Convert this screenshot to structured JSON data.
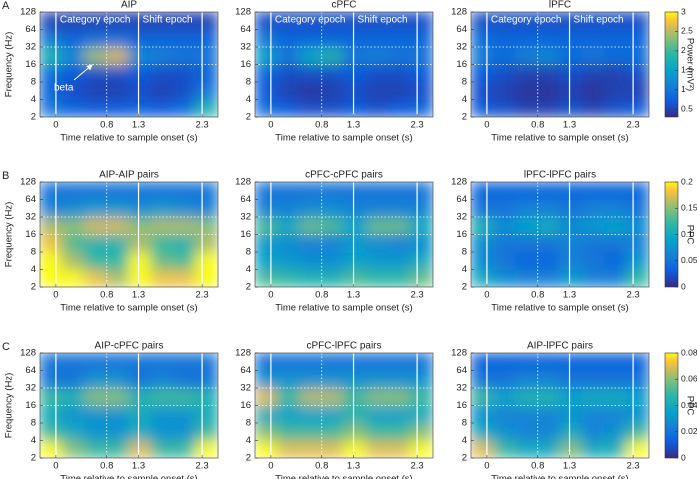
{
  "panel_labels": [
    "A",
    "B",
    "C"
  ],
  "chart_data": [
    {
      "type": "heatmap",
      "title": "AIP",
      "xlabel": "Time relative to sample onset (s)",
      "ylabel": "Frequency (Hz)",
      "xlim": [
        -0.25,
        2.55
      ],
      "xticks": [
        0,
        0.8,
        1.3,
        2.3
      ],
      "ylim": [
        2,
        128
      ],
      "yticks": [
        2,
        4,
        8,
        16,
        32,
        64,
        128
      ],
      "log_y": true,
      "x_bins": [
        -0.25,
        0.1,
        0.45,
        0.8,
        1.15,
        1.5,
        1.85,
        2.2,
        2.55
      ],
      "y_bins": [
        2,
        4,
        8,
        16,
        32,
        64,
        128
      ],
      "values": [
        [
          1.0,
          0.8,
          0.7,
          0.7,
          0.8,
          0.7,
          0.9,
          1.8
        ],
        [
          0.8,
          0.6,
          0.5,
          0.5,
          0.6,
          0.5,
          0.6,
          1.0
        ],
        [
          0.9,
          0.7,
          0.6,
          0.6,
          0.7,
          0.6,
          0.6,
          0.8
        ],
        [
          1.8,
          1.2,
          2.4,
          2.6,
          1.2,
          1.1,
          1.0,
          1.0
        ],
        [
          1.0,
          0.8,
          0.9,
          0.9,
          0.8,
          0.8,
          0.8,
          0.8
        ],
        [
          0.5,
          0.5,
          0.5,
          0.5,
          0.5,
          0.5,
          0.5,
          0.5
        ]
      ],
      "zlim": [
        0.3,
        3
      ],
      "vlines": [
        0,
        1.3,
        2.3
      ],
      "dotted_vlines": [
        0.8
      ],
      "dotted_hlines": [
        16,
        32
      ],
      "annotations": [
        "Category epoch",
        "Shift epoch"
      ],
      "arrow_label": "beta"
    },
    {
      "type": "heatmap",
      "title": "cPFC",
      "xlabel": "Time relative to sample onset (s)",
      "xlim": [
        -0.25,
        2.55
      ],
      "xticks": [
        0,
        0.8,
        1.3,
        2.3
      ],
      "ylim": [
        2,
        128
      ],
      "yticks": [
        2,
        4,
        8,
        16,
        32,
        64,
        128
      ],
      "log_y": true,
      "x_bins": [
        -0.25,
        0.1,
        0.45,
        0.8,
        1.15,
        1.5,
        1.85,
        2.2,
        2.55
      ],
      "y_bins": [
        2,
        4,
        8,
        16,
        32,
        64,
        128
      ],
      "values": [
        [
          0.9,
          0.7,
          0.6,
          0.6,
          0.7,
          0.6,
          0.7,
          0.8
        ],
        [
          0.7,
          0.5,
          0.4,
          0.5,
          0.6,
          0.5,
          0.5,
          0.6
        ],
        [
          0.8,
          0.6,
          0.6,
          0.6,
          0.7,
          0.6,
          0.6,
          0.7
        ],
        [
          1.5,
          1.0,
          1.6,
          1.8,
          1.0,
          1.1,
          1.0,
          1.0
        ],
        [
          1.0,
          0.8,
          0.8,
          0.8,
          0.8,
          0.8,
          0.8,
          0.8
        ],
        [
          0.6,
          0.6,
          0.6,
          0.6,
          0.6,
          0.6,
          0.6,
          0.6
        ]
      ],
      "zlim": [
        0.3,
        3
      ],
      "vlines": [
        0,
        1.3,
        2.3
      ],
      "dotted_vlines": [
        0.8
      ],
      "dotted_hlines": [
        16,
        32
      ],
      "annotations": [
        "Category epoch",
        "Shift epoch"
      ]
    },
    {
      "type": "heatmap",
      "title": "lPFC",
      "xlabel": "Time relative to sample onset (s)",
      "xlim": [
        -0.25,
        2.55
      ],
      "xticks": [
        0,
        0.8,
        1.3,
        2.3
      ],
      "ylim": [
        2,
        128
      ],
      "yticks": [
        2,
        4,
        8,
        16,
        32,
        64,
        128
      ],
      "log_y": true,
      "x_bins": [
        -0.25,
        0.1,
        0.45,
        0.8,
        1.15,
        1.5,
        1.85,
        2.2,
        2.55
      ],
      "y_bins": [
        2,
        4,
        8,
        16,
        32,
        64,
        128
      ],
      "values": [
        [
          0.7,
          0.6,
          0.5,
          0.5,
          0.6,
          0.5,
          0.6,
          0.7
        ],
        [
          0.6,
          0.5,
          0.4,
          0.4,
          0.5,
          0.4,
          0.5,
          0.5
        ],
        [
          0.7,
          0.6,
          0.5,
          0.5,
          0.6,
          0.5,
          0.5,
          0.6
        ],
        [
          1.1,
          0.9,
          1.1,
          1.2,
          0.9,
          1.0,
          0.9,
          0.9
        ],
        [
          0.9,
          0.8,
          0.8,
          0.8,
          0.8,
          0.8,
          0.8,
          0.8
        ],
        [
          0.6,
          0.6,
          0.6,
          0.6,
          0.6,
          0.6,
          0.6,
          0.6
        ]
      ],
      "zlim": [
        0.3,
        3
      ],
      "zticks": [
        0.5,
        1,
        1.5,
        2,
        2.5,
        3
      ],
      "zlabel": "Power (mV²)",
      "vlines": [
        0,
        1.3,
        2.3
      ],
      "dotted_vlines": [
        0.8
      ],
      "dotted_hlines": [
        16,
        32
      ],
      "annotations": [
        "Category epoch",
        "Shift epoch"
      ]
    },
    {
      "type": "heatmap",
      "title": "AIP-AIP pairs",
      "xlabel": "Time relative to sample onset (s)",
      "ylabel": "Frequency (Hz)",
      "xlim": [
        -0.25,
        2.55
      ],
      "xticks": [
        0,
        0.8,
        1.3,
        2.3
      ],
      "ylim": [
        2,
        128
      ],
      "yticks": [
        2,
        4,
        8,
        16,
        32,
        64,
        128
      ],
      "log_y": true,
      "x_bins": [
        -0.25,
        0.1,
        0.45,
        0.8,
        1.15,
        1.5,
        1.85,
        2.2,
        2.55
      ],
      "y_bins": [
        2,
        4,
        8,
        16,
        32,
        64,
        128
      ],
      "values": [
        [
          0.2,
          0.2,
          0.18,
          0.16,
          0.2,
          0.18,
          0.18,
          0.2
        ],
        [
          0.2,
          0.16,
          0.12,
          0.12,
          0.2,
          0.14,
          0.13,
          0.2
        ],
        [
          0.18,
          0.13,
          0.11,
          0.11,
          0.16,
          0.12,
          0.11,
          0.16
        ],
        [
          0.16,
          0.15,
          0.17,
          0.17,
          0.15,
          0.16,
          0.16,
          0.15
        ],
        [
          0.06,
          0.07,
          0.08,
          0.08,
          0.07,
          0.08,
          0.07,
          0.06
        ],
        [
          0.05,
          0.05,
          0.05,
          0.05,
          0.05,
          0.05,
          0.05,
          0.05
        ]
      ],
      "zlim": [
        0,
        0.2
      ],
      "vlines": [
        0,
        1.3,
        2.3
      ],
      "dotted_vlines": [
        0.8
      ],
      "dotted_hlines": [
        16,
        32
      ]
    },
    {
      "type": "heatmap",
      "title": "cPFC-cPFC pairs",
      "xlabel": "Time relative to sample onset (s)",
      "xlim": [
        -0.25,
        2.55
      ],
      "xticks": [
        0,
        0.8,
        1.3,
        2.3
      ],
      "ylim": [
        2,
        128
      ],
      "yticks": [
        2,
        4,
        8,
        16,
        32,
        64,
        128
      ],
      "log_y": true,
      "x_bins": [
        -0.25,
        0.1,
        0.45,
        0.8,
        1.15,
        1.5,
        1.85,
        2.2,
        2.55
      ],
      "y_bins": [
        2,
        4,
        8,
        16,
        32,
        64,
        128
      ],
      "values": [
        [
          0.13,
          0.12,
          0.11,
          0.11,
          0.13,
          0.12,
          0.12,
          0.14
        ],
        [
          0.09,
          0.08,
          0.07,
          0.07,
          0.09,
          0.08,
          0.08,
          0.1
        ],
        [
          0.08,
          0.07,
          0.06,
          0.06,
          0.08,
          0.07,
          0.06,
          0.07
        ],
        [
          0.13,
          0.1,
          0.14,
          0.13,
          0.09,
          0.14,
          0.14,
          0.1
        ],
        [
          0.06,
          0.06,
          0.07,
          0.07,
          0.06,
          0.06,
          0.06,
          0.06
        ],
        [
          0.05,
          0.05,
          0.05,
          0.05,
          0.05,
          0.05,
          0.05,
          0.05
        ]
      ],
      "zlim": [
        0,
        0.2
      ],
      "vlines": [
        0,
        1.3,
        2.3
      ],
      "dotted_vlines": [
        0.8
      ],
      "dotted_hlines": [
        16,
        32
      ]
    },
    {
      "type": "heatmap",
      "title": "lPFC-lPFC pairs",
      "xlabel": "Time relative to sample onset (s)",
      "xlim": [
        -0.25,
        2.55
      ],
      "xticks": [
        0,
        0.8,
        1.3,
        2.3
      ],
      "ylim": [
        2,
        128
      ],
      "yticks": [
        2,
        4,
        8,
        16,
        32,
        64,
        128
      ],
      "log_y": true,
      "x_bins": [
        -0.25,
        0.1,
        0.45,
        0.8,
        1.15,
        1.5,
        1.85,
        2.2,
        2.55
      ],
      "y_bins": [
        2,
        4,
        8,
        16,
        32,
        64,
        128
      ],
      "values": [
        [
          0.1,
          0.07,
          0.06,
          0.06,
          0.08,
          0.06,
          0.06,
          0.12
        ],
        [
          0.07,
          0.05,
          0.04,
          0.04,
          0.06,
          0.05,
          0.04,
          0.08
        ],
        [
          0.07,
          0.05,
          0.05,
          0.05,
          0.06,
          0.05,
          0.05,
          0.06
        ],
        [
          0.11,
          0.07,
          0.09,
          0.1,
          0.07,
          0.08,
          0.09,
          0.07
        ],
        [
          0.05,
          0.05,
          0.06,
          0.06,
          0.05,
          0.06,
          0.06,
          0.05
        ],
        [
          0.04,
          0.04,
          0.04,
          0.04,
          0.04,
          0.04,
          0.04,
          0.04
        ]
      ],
      "zlim": [
        0,
        0.2
      ],
      "zticks": [
        0,
        0.05,
        0.1,
        0.15,
        0.2
      ],
      "zlabel": "PPC",
      "vlines": [
        0,
        1.3,
        2.3
      ],
      "dotted_vlines": [
        0.8
      ],
      "dotted_hlines": [
        16,
        32
      ]
    },
    {
      "type": "heatmap",
      "title": "AIP-cPFC pairs",
      "xlabel": "Time relative to sample onset (s)",
      "ylabel": "Frequency (Hz)",
      "xlim": [
        -0.25,
        2.55
      ],
      "xticks": [
        0,
        0.8,
        1.3,
        2.3
      ],
      "ylim": [
        2,
        128
      ],
      "yticks": [
        2,
        4,
        8,
        16,
        32,
        64,
        128
      ],
      "log_y": true,
      "x_bins": [
        -0.25,
        0.1,
        0.45,
        0.8,
        1.15,
        1.5,
        1.85,
        2.2,
        2.55
      ],
      "y_bins": [
        2,
        4,
        8,
        16,
        32,
        64,
        128
      ],
      "values": [
        [
          0.08,
          0.06,
          0.05,
          0.05,
          0.07,
          0.05,
          0.05,
          0.08
        ],
        [
          0.05,
          0.04,
          0.03,
          0.03,
          0.04,
          0.03,
          0.03,
          0.05
        ],
        [
          0.04,
          0.03,
          0.03,
          0.03,
          0.04,
          0.03,
          0.03,
          0.04
        ],
        [
          0.05,
          0.045,
          0.06,
          0.06,
          0.045,
          0.05,
          0.05,
          0.045
        ],
        [
          0.02,
          0.02,
          0.03,
          0.03,
          0.02,
          0.025,
          0.02,
          0.02
        ],
        [
          0.02,
          0.02,
          0.02,
          0.02,
          0.02,
          0.02,
          0.02,
          0.02
        ]
      ],
      "zlim": [
        0,
        0.08
      ],
      "vlines": [
        0,
        1.3,
        2.3
      ],
      "dotted_vlines": [
        0.8
      ],
      "dotted_hlines": [
        16,
        32
      ]
    },
    {
      "type": "heatmap",
      "title": "cPFC-lPFC pairs",
      "xlabel": "Time relative to sample onset (s)",
      "xlim": [
        -0.25,
        2.55
      ],
      "xticks": [
        0,
        0.8,
        1.3,
        2.3
      ],
      "ylim": [
        2,
        128
      ],
      "yticks": [
        2,
        4,
        8,
        16,
        32,
        64,
        128
      ],
      "log_y": true,
      "x_bins": [
        -0.25,
        0.1,
        0.45,
        0.8,
        1.15,
        1.5,
        1.85,
        2.2,
        2.55
      ],
      "y_bins": [
        2,
        4,
        8,
        16,
        32,
        64,
        128
      ],
      "values": [
        [
          0.08,
          0.07,
          0.07,
          0.07,
          0.08,
          0.07,
          0.07,
          0.08
        ],
        [
          0.06,
          0.05,
          0.05,
          0.05,
          0.06,
          0.05,
          0.05,
          0.06
        ],
        [
          0.04,
          0.035,
          0.035,
          0.035,
          0.045,
          0.035,
          0.035,
          0.04
        ],
        [
          0.07,
          0.05,
          0.065,
          0.065,
          0.05,
          0.06,
          0.06,
          0.05
        ],
        [
          0.03,
          0.03,
          0.03,
          0.03,
          0.03,
          0.03,
          0.03,
          0.03
        ],
        [
          0.02,
          0.02,
          0.02,
          0.02,
          0.02,
          0.02,
          0.02,
          0.02
        ]
      ],
      "zlim": [
        0,
        0.08
      ],
      "vlines": [
        0,
        1.3,
        2.3
      ],
      "dotted_vlines": [
        0.8
      ],
      "dotted_hlines": [
        16,
        32
      ]
    },
    {
      "type": "heatmap",
      "title": "AIP-lPFC pairs",
      "xlabel": "Time relative to sample onset (s)",
      "xlim": [
        -0.25,
        2.55
      ],
      "xticks": [
        0,
        0.8,
        1.3,
        2.3
      ],
      "ylim": [
        2,
        128
      ],
      "yticks": [
        2,
        4,
        8,
        16,
        32,
        64,
        128
      ],
      "log_y": true,
      "x_bins": [
        -0.25,
        0.1,
        0.45,
        0.8,
        1.15,
        1.5,
        1.85,
        2.2,
        2.55
      ],
      "y_bins": [
        2,
        4,
        8,
        16,
        32,
        64,
        128
      ],
      "values": [
        [
          0.07,
          0.05,
          0.04,
          0.04,
          0.06,
          0.04,
          0.045,
          0.08
        ],
        [
          0.04,
          0.03,
          0.025,
          0.025,
          0.04,
          0.025,
          0.03,
          0.05
        ],
        [
          0.03,
          0.025,
          0.025,
          0.025,
          0.03,
          0.025,
          0.025,
          0.03
        ],
        [
          0.05,
          0.035,
          0.045,
          0.045,
          0.035,
          0.04,
          0.04,
          0.035
        ],
        [
          0.02,
          0.02,
          0.025,
          0.025,
          0.02,
          0.02,
          0.02,
          0.02
        ],
        [
          0.015,
          0.015,
          0.015,
          0.015,
          0.015,
          0.015,
          0.015,
          0.015
        ]
      ],
      "zlim": [
        0,
        0.08
      ],
      "zticks": [
        0,
        0.02,
        0.04,
        0.06,
        0.08
      ],
      "zlabel": "PPC",
      "vlines": [
        0,
        1.3,
        2.3
      ],
      "dotted_vlines": [
        0.8
      ],
      "dotted_hlines": [
        16,
        32
      ]
    }
  ]
}
